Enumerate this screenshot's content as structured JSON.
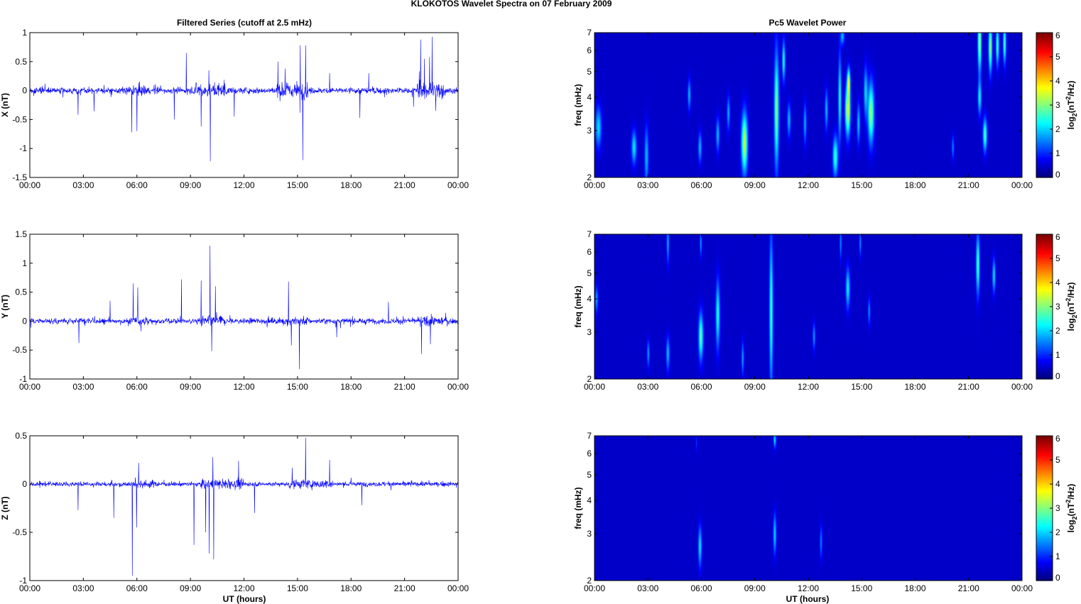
{
  "figure_title": "KLOKOTOS Wavelet Spectra on 07 February  2009",
  "colors": {
    "trace": "#0000ff",
    "spectrogram_background": "#00008f"
  },
  "colormap": "jet",
  "chart_data": [
    {
      "type": "line",
      "title": "Filtered Series (cutoff at 2.5 mHz)",
      "ylabel": "X (nT)",
      "xlabel": "",
      "xlim": [
        "00:00",
        "24:00"
      ],
      "ylim": [
        -1.5,
        1
      ],
      "xticks": [
        "00:00",
        "03:00",
        "06:00",
        "09:00",
        "12:00",
        "15:00",
        "18:00",
        "21:00",
        "00:00"
      ],
      "yticks": [
        "-1.5",
        "-1",
        "-0.5",
        "0",
        "0.5",
        "1"
      ],
      "noise_std": 0.045,
      "spikes": [
        {
          "t": 5.72,
          "v": -0.72
        },
        {
          "t": 6.0,
          "v": -0.7
        },
        {
          "t": 8.77,
          "v": 0.65
        },
        {
          "t": 9.6,
          "v": -0.62
        },
        {
          "t": 10.12,
          "v": -1.22
        },
        {
          "t": 10.03,
          "v": 0.35
        },
        {
          "t": 11.45,
          "v": -0.45
        },
        {
          "t": 13.9,
          "v": 0.5
        },
        {
          "t": 14.3,
          "v": 0.38
        },
        {
          "t": 15.15,
          "v": 0.78
        },
        {
          "t": 15.3,
          "v": -1.2
        },
        {
          "t": 15.45,
          "v": 0.78
        },
        {
          "t": 19.0,
          "v": 0.3
        },
        {
          "t": 21.9,
          "v": 0.88
        },
        {
          "t": 22.12,
          "v": 0.55
        },
        {
          "t": 22.4,
          "v": 0.58
        },
        {
          "t": 22.55,
          "v": 0.93
        },
        {
          "t": 22.75,
          "v": -0.35
        },
        {
          "t": 21.5,
          "v": -0.28
        },
        {
          "t": 2.7,
          "v": -0.42
        },
        {
          "t": 3.6,
          "v": -0.36
        },
        {
          "t": 8.1,
          "v": -0.5
        },
        {
          "t": 18.5,
          "v": -0.47
        },
        {
          "t": 16.8,
          "v": 0.3
        }
      ],
      "active_windows": [
        [
          5.4,
          6.6,
          1.8
        ],
        [
          9.2,
          11.0,
          2.2
        ],
        [
          13.8,
          15.6,
          2.6
        ],
        [
          21.7,
          23.2,
          2.8
        ]
      ]
    },
    {
      "type": "line",
      "ylabel": "Y (nT)",
      "xlabel": "",
      "xlim": [
        "00:00",
        "24:00"
      ],
      "ylim": [
        -1,
        1.5
      ],
      "xticks": [
        "00:00",
        "03:00",
        "06:00",
        "09:00",
        "12:00",
        "15:00",
        "18:00",
        "21:00",
        "00:00"
      ],
      "yticks": [
        "-1",
        "-0.5",
        "0",
        "0.5",
        "1",
        "1.5"
      ],
      "noise_std": 0.04,
      "spikes": [
        {
          "t": 5.8,
          "v": 0.65
        },
        {
          "t": 6.05,
          "v": 0.58
        },
        {
          "t": 8.5,
          "v": 0.72
        },
        {
          "t": 9.6,
          "v": 0.7
        },
        {
          "t": 10.1,
          "v": 1.3
        },
        {
          "t": 10.2,
          "v": -0.52
        },
        {
          "t": 10.4,
          "v": 0.6
        },
        {
          "t": 14.5,
          "v": 0.68
        },
        {
          "t": 14.65,
          "v": -0.42
        },
        {
          "t": 15.1,
          "v": -0.83
        },
        {
          "t": 21.95,
          "v": -0.57
        },
        {
          "t": 22.45,
          "v": -0.4
        },
        {
          "t": 2.75,
          "v": -0.38
        },
        {
          "t": 4.5,
          "v": 0.35
        },
        {
          "t": 20.1,
          "v": 0.33
        },
        {
          "t": 17.2,
          "v": -0.28
        }
      ],
      "active_windows": [
        [
          5.4,
          6.8,
          1.6
        ],
        [
          9.3,
          11.0,
          1.8
        ],
        [
          14.3,
          15.6,
          1.8
        ],
        [
          21.8,
          23.5,
          1.7
        ]
      ]
    },
    {
      "type": "line",
      "ylabel": "Z (nT)",
      "xlabel": "UT (hours)",
      "xlim": [
        "00:00",
        "24:00"
      ],
      "ylim": [
        -1,
        0.5
      ],
      "xticks": [
        "00:00",
        "03:00",
        "06:00",
        "09:00",
        "12:00",
        "15:00",
        "18:00",
        "21:00",
        "00:00"
      ],
      "yticks": [
        "-1",
        "-0.5",
        "0",
        "0.5"
      ],
      "noise_std": 0.02,
      "spikes": [
        {
          "t": 5.75,
          "v": -0.95
        },
        {
          "t": 5.98,
          "v": -0.45
        },
        {
          "t": 6.1,
          "v": 0.22
        },
        {
          "t": 4.7,
          "v": -0.35
        },
        {
          "t": 9.2,
          "v": -0.63
        },
        {
          "t": 9.85,
          "v": -0.5
        },
        {
          "t": 10.05,
          "v": -0.72
        },
        {
          "t": 10.3,
          "v": -0.78
        },
        {
          "t": 10.25,
          "v": 0.28
        },
        {
          "t": 11.7,
          "v": 0.24
        },
        {
          "t": 14.7,
          "v": 0.17
        },
        {
          "t": 15.45,
          "v": 0.48
        },
        {
          "t": 16.8,
          "v": 0.25
        },
        {
          "t": 2.7,
          "v": -0.27
        },
        {
          "t": 12.6,
          "v": -0.3
        },
        {
          "t": 18.6,
          "v": -0.22
        }
      ],
      "active_windows": [
        [
          5.5,
          7.0,
          1.7
        ],
        [
          9.5,
          12.0,
          2.0
        ],
        [
          14.5,
          17.0,
          2.0
        ]
      ]
    },
    {
      "type": "heatmap",
      "title": "Pc5 Wavelet Power",
      "ylabel": "freq (mHz)",
      "xlabel": "",
      "colorbar_label": "log2(nT2/Hz)",
      "xlim": [
        "00:00",
        "24:00"
      ],
      "ylim": [
        2,
        7
      ],
      "yscale": "log",
      "clim": [
        0,
        6
      ],
      "xticks": [
        "00:00",
        "03:00",
        "06:00",
        "09:00",
        "12:00",
        "15:00",
        "18:00",
        "21:00",
        "00:00"
      ],
      "yticks": [
        "2",
        "3",
        "4",
        "5",
        "6",
        "7"
      ],
      "cticks": [
        "0",
        "1",
        "2",
        "3",
        "4",
        "5",
        "6"
      ],
      "blobs": [
        {
          "t": 0.2,
          "f": 3.1,
          "st": 0.12,
          "sf": 0.12,
          "p": 1.8
        },
        {
          "t": 2.2,
          "f": 2.6,
          "st": 0.1,
          "sf": 0.1,
          "p": 1.9
        },
        {
          "t": 2.9,
          "f": 2.4,
          "st": 0.08,
          "sf": 0.18,
          "p": 1.6
        },
        {
          "t": 5.3,
          "f": 4.1,
          "st": 0.06,
          "sf": 0.09,
          "p": 1.6
        },
        {
          "t": 5.9,
          "f": 2.6,
          "st": 0.07,
          "sf": 0.09,
          "p": 1.6
        },
        {
          "t": 6.9,
          "f": 2.9,
          "st": 0.07,
          "sf": 0.1,
          "p": 1.6
        },
        {
          "t": 7.5,
          "f": 3.5,
          "st": 0.06,
          "sf": 0.1,
          "p": 1.5
        },
        {
          "t": 8.4,
          "f": 2.7,
          "st": 0.12,
          "sf": 0.18,
          "p": 3.3
        },
        {
          "t": 10.2,
          "f": 3.6,
          "st": 0.09,
          "sf": 0.35,
          "p": 2.8
        },
        {
          "t": 10.6,
          "f": 5.5,
          "st": 0.06,
          "sf": 0.12,
          "p": 2.2
        },
        {
          "t": 10.9,
          "f": 3.3,
          "st": 0.07,
          "sf": 0.1,
          "p": 1.6
        },
        {
          "t": 11.8,
          "f": 3.2,
          "st": 0.06,
          "sf": 0.12,
          "p": 1.5
        },
        {
          "t": 13.0,
          "f": 3.6,
          "st": 0.06,
          "sf": 0.12,
          "p": 1.6
        },
        {
          "t": 13.5,
          "f": 2.4,
          "st": 0.1,
          "sf": 0.12,
          "p": 2.4
        },
        {
          "t": 13.75,
          "f": 4.0,
          "st": 0.06,
          "sf": 0.25,
          "p": 2.2
        },
        {
          "t": 14.2,
          "f": 3.6,
          "st": 0.1,
          "sf": 0.15,
          "p": 3.6
        },
        {
          "t": 14.25,
          "f": 4.6,
          "st": 0.06,
          "sf": 0.08,
          "p": 2.8
        },
        {
          "t": 13.9,
          "f": 6.8,
          "st": 0.08,
          "sf": 0.05,
          "p": 1.6
        },
        {
          "t": 14.8,
          "f": 3.2,
          "st": 0.06,
          "sf": 0.12,
          "p": 1.7
        },
        {
          "t": 15.2,
          "f": 4.2,
          "st": 0.07,
          "sf": 0.15,
          "p": 1.8
        },
        {
          "t": 15.5,
          "f": 3.5,
          "st": 0.12,
          "sf": 0.18,
          "p": 3.0
        },
        {
          "t": 21.9,
          "f": 2.9,
          "st": 0.08,
          "sf": 0.1,
          "p": 2.5
        },
        {
          "t": 21.6,
          "f": 4.0,
          "st": 0.07,
          "sf": 0.1,
          "p": 2.0
        },
        {
          "t": 21.6,
          "f": 6.5,
          "st": 0.07,
          "sf": 0.18,
          "p": 3.2
        },
        {
          "t": 22.2,
          "f": 6.2,
          "st": 0.07,
          "sf": 0.15,
          "p": 3.0
        },
        {
          "t": 22.6,
          "f": 6.3,
          "st": 0.06,
          "sf": 0.12,
          "p": 2.5
        },
        {
          "t": 23.0,
          "f": 6.4,
          "st": 0.06,
          "sf": 0.12,
          "p": 2.5
        },
        {
          "t": 20.1,
          "f": 2.6,
          "st": 0.05,
          "sf": 0.07,
          "p": 1.2
        }
      ]
    },
    {
      "type": "heatmap",
      "ylabel": "freq (mHz)",
      "xlabel": "",
      "colorbar_label": "log2(nT2/Hz)",
      "xlim": [
        "00:00",
        "24:00"
      ],
      "ylim": [
        2,
        7
      ],
      "yscale": "log",
      "clim": [
        0,
        6
      ],
      "xticks": [
        "00:00",
        "03:00",
        "06:00",
        "09:00",
        "12:00",
        "15:00",
        "18:00",
        "21:00",
        "00:00"
      ],
      "yticks": [
        "2",
        "3",
        "4",
        "5",
        "6",
        "7"
      ],
      "cticks": [
        "0",
        "1",
        "2",
        "3",
        "4",
        "5",
        "6"
      ],
      "blobs": [
        {
          "t": 0.1,
          "f": 4.0,
          "st": 0.06,
          "sf": 0.08,
          "p": 1.4
        },
        {
          "t": 3.0,
          "f": 2.5,
          "st": 0.05,
          "sf": 0.08,
          "p": 1.4
        },
        {
          "t": 4.1,
          "f": 2.5,
          "st": 0.07,
          "sf": 0.1,
          "p": 1.6
        },
        {
          "t": 4.1,
          "f": 6.5,
          "st": 0.05,
          "sf": 0.12,
          "p": 1.5
        },
        {
          "t": 5.95,
          "f": 2.9,
          "st": 0.09,
          "sf": 0.14,
          "p": 2.6
        },
        {
          "t": 5.95,
          "f": 6.5,
          "st": 0.04,
          "sf": 0.08,
          "p": 1.4
        },
        {
          "t": 6.9,
          "f": 3.5,
          "st": 0.08,
          "sf": 0.2,
          "p": 2.2
        },
        {
          "t": 8.3,
          "f": 2.4,
          "st": 0.05,
          "sf": 0.1,
          "p": 1.4
        },
        {
          "t": 9.9,
          "f": 3.6,
          "st": 0.07,
          "sf": 0.45,
          "p": 2.4
        },
        {
          "t": 12.3,
          "f": 2.9,
          "st": 0.05,
          "sf": 0.08,
          "p": 1.4
        },
        {
          "t": 13.8,
          "f": 6.5,
          "st": 0.04,
          "sf": 0.1,
          "p": 1.3
        },
        {
          "t": 14.2,
          "f": 4.4,
          "st": 0.08,
          "sf": 0.12,
          "p": 2.0
        },
        {
          "t": 14.9,
          "f": 6.5,
          "st": 0.04,
          "sf": 0.08,
          "p": 1.3
        },
        {
          "t": 15.4,
          "f": 3.6,
          "st": 0.05,
          "sf": 0.08,
          "p": 1.3
        },
        {
          "t": 21.5,
          "f": 5.4,
          "st": 0.07,
          "sf": 0.18,
          "p": 2.5
        },
        {
          "t": 22.4,
          "f": 4.9,
          "st": 0.06,
          "sf": 0.1,
          "p": 1.9
        }
      ]
    },
    {
      "type": "heatmap",
      "ylabel": "freq (mHz)",
      "xlabel": "UT (hours)",
      "colorbar_label": "log2(nT2/Hz)",
      "xlim": [
        "00:00",
        "24:00"
      ],
      "ylim": [
        2,
        7
      ],
      "yscale": "log",
      "clim": [
        0,
        6
      ],
      "xticks": [
        "00:00",
        "03:00",
        "06:00",
        "09:00",
        "12:00",
        "15:00",
        "18:00",
        "21:00",
        "00:00"
      ],
      "yticks": [
        "2",
        "3",
        "4",
        "5",
        "6",
        "7"
      ],
      "cticks": [
        "0",
        "1",
        "2",
        "3",
        "4",
        "5",
        "6"
      ],
      "blobs": [
        {
          "t": 5.9,
          "f": 2.7,
          "st": 0.07,
          "sf": 0.12,
          "p": 1.9
        },
        {
          "t": 10.1,
          "f": 3.0,
          "st": 0.06,
          "sf": 0.12,
          "p": 1.8
        },
        {
          "t": 10.1,
          "f": 6.8,
          "st": 0.05,
          "sf": 0.05,
          "p": 1.9
        },
        {
          "t": 12.7,
          "f": 2.8,
          "st": 0.05,
          "sf": 0.1,
          "p": 1.2
        },
        {
          "t": 5.7,
          "f": 6.6,
          "st": 0.03,
          "sf": 0.05,
          "p": 0.7
        }
      ]
    }
  ]
}
